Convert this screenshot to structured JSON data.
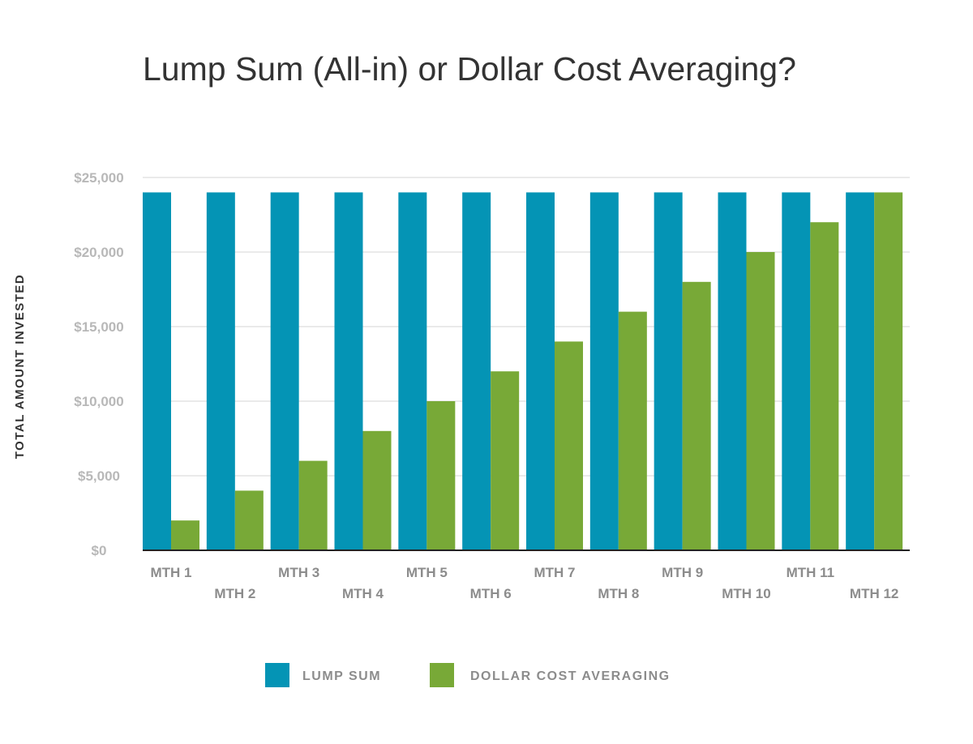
{
  "chart_data": {
    "type": "bar",
    "title": "Lump Sum (All-in) or Dollar Cost Averaging?",
    "ylabel": "TOTAL AMOUNT INVESTED",
    "xlabel": "",
    "categories": [
      "MTH 1",
      "MTH 2",
      "MTH 3",
      "MTH 4",
      "MTH 5",
      "MTH 6",
      "MTH 7",
      "MTH 8",
      "MTH 9",
      "MTH 10",
      "MTH 11",
      "MTH 12"
    ],
    "series": [
      {
        "name": "LUMP SUM",
        "color": "#0494b5",
        "values": [
          24000,
          24000,
          24000,
          24000,
          24000,
          24000,
          24000,
          24000,
          24000,
          24000,
          24000,
          24000
        ]
      },
      {
        "name": "DOLLAR COST AVERAGING",
        "color": "#78a937",
        "values": [
          2000,
          4000,
          6000,
          8000,
          10000,
          12000,
          14000,
          16000,
          18000,
          20000,
          22000,
          24000
        ]
      }
    ],
    "ylim": [
      0,
      25000
    ],
    "yticks": [
      0,
      5000,
      10000,
      15000,
      20000,
      25000
    ],
    "ytick_labels": [
      "$0",
      "$5,000",
      "$10,000",
      "$15,000",
      "$20,000",
      "$25,000"
    ],
    "grid": true,
    "legend_position": "bottom-center"
  }
}
